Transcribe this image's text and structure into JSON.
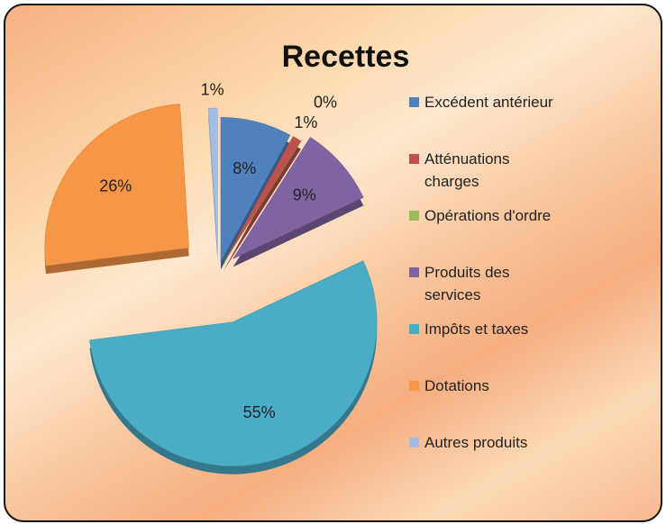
{
  "chart_data": {
    "type": "pie",
    "title": "Recettes",
    "categories": [
      "Excédent antérieur",
      "Atténuations charges",
      "Opérations d'ordre",
      "Produits des services",
      "Impôts et taxes",
      "Dotations",
      "Autres produits"
    ],
    "values": [
      8,
      1,
      0,
      9,
      55,
      26,
      1
    ],
    "value_labels": [
      "8%",
      "1%",
      "0%",
      "9%",
      "55%",
      "26%",
      "1%"
    ],
    "colors": [
      "#4f81bd",
      "#c0504d",
      "#9bbb59",
      "#8064a2",
      "#4bacc6",
      "#f79646",
      "#a3bde3"
    ],
    "legend": "right"
  }
}
